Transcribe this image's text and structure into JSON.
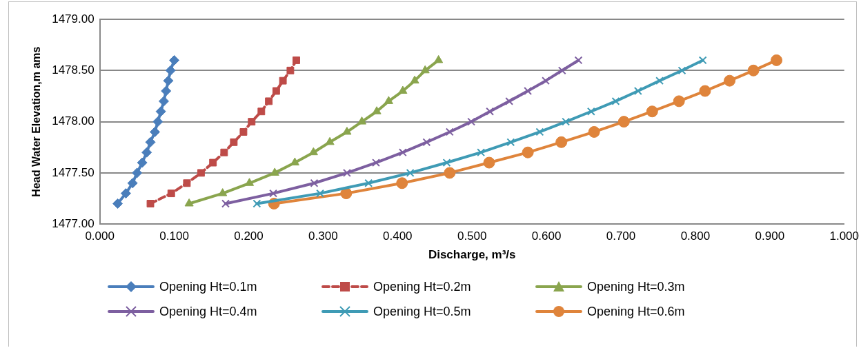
{
  "chart_data": {
    "type": "line",
    "xlabel": "Discharge, m³/s",
    "ylabel": "Head Water Elevation,m ams",
    "xlim": [
      0,
      1
    ],
    "ylim": [
      1477,
      1479
    ],
    "xticks": [
      {
        "value": 0,
        "label": "0.000"
      },
      {
        "value": 0.1,
        "label": "0.100"
      },
      {
        "value": 0.2,
        "label": "0.200"
      },
      {
        "value": 0.3,
        "label": "0.300"
      },
      {
        "value": 0.4,
        "label": "0.400"
      },
      {
        "value": 0.5,
        "label": "0.500"
      },
      {
        "value": 0.6,
        "label": "0.600"
      },
      {
        "value": 0.7,
        "label": "0.700"
      },
      {
        "value": 0.8,
        "label": "0.800"
      },
      {
        "value": 0.9,
        "label": "0.900"
      },
      {
        "value": 1,
        "label": "1.000"
      }
    ],
    "yticks": [
      {
        "value": 1477,
        "label": "1477.00"
      },
      {
        "value": 1477.5,
        "label": "1477.50"
      },
      {
        "value": 1478,
        "label": "1478.00"
      },
      {
        "value": 1478.5,
        "label": "1478.50"
      },
      {
        "value": 1479,
        "label": "1479.00"
      }
    ],
    "grid": "y",
    "legend": "bottom",
    "series": [
      {
        "name": "Opening Ht=0.1m",
        "color": "#4a7ebb",
        "marker": "diamond",
        "x": [
          0.024,
          0.035,
          0.044,
          0.05,
          0.057,
          0.063,
          0.068,
          0.074,
          0.078,
          0.082,
          0.086,
          0.089,
          0.092,
          0.095,
          0.1
        ],
        "values": [
          1477.2,
          1477.3,
          1477.4,
          1477.5,
          1477.6,
          1477.7,
          1477.8,
          1477.9,
          1478.0,
          1478.1,
          1478.2,
          1478.3,
          1478.4,
          1478.5,
          1478.6
        ]
      },
      {
        "name": "Opening Ht=0.2m",
        "color": "#be4b48",
        "marker": "square",
        "line_style": "dashed",
        "x": [
          0.068,
          0.096,
          0.117,
          0.136,
          0.152,
          0.167,
          0.18,
          0.193,
          0.204,
          0.217,
          0.227,
          0.237,
          0.246,
          0.256,
          0.264
        ],
        "values": [
          1477.2,
          1477.3,
          1477.4,
          1477.5,
          1477.6,
          1477.7,
          1477.8,
          1477.9,
          1478.0,
          1478.1,
          1478.2,
          1478.3,
          1478.4,
          1478.5,
          1478.6
        ]
      },
      {
        "name": "Opening Ht=0.3m",
        "color": "#8aa54e",
        "marker": "triangle",
        "x": [
          0.12,
          0.165,
          0.201,
          0.235,
          0.262,
          0.287,
          0.309,
          0.332,
          0.352,
          0.372,
          0.388,
          0.407,
          0.423,
          0.437,
          0.455
        ],
        "values": [
          1477.2,
          1477.3,
          1477.4,
          1477.5,
          1477.6,
          1477.7,
          1477.8,
          1477.9,
          1478.0,
          1478.1,
          1478.2,
          1478.3,
          1478.4,
          1478.5,
          1478.6
        ]
      },
      {
        "name": "Opening Ht=0.4m",
        "color": "#7d5fa0",
        "marker": "cross",
        "x": [
          0.169,
          0.233,
          0.288,
          0.332,
          0.371,
          0.407,
          0.439,
          0.47,
          0.499,
          0.524,
          0.55,
          0.575,
          0.599,
          0.621,
          0.643
        ],
        "values": [
          1477.2,
          1477.3,
          1477.4,
          1477.5,
          1477.6,
          1477.7,
          1477.8,
          1477.9,
          1478.0,
          1478.1,
          1478.2,
          1478.3,
          1478.4,
          1478.5,
          1478.6
        ]
      },
      {
        "name": "Opening Ht=0.5m",
        "color": "#3f9bb5",
        "marker": "cross",
        "x": [
          0.211,
          0.296,
          0.361,
          0.417,
          0.466,
          0.512,
          0.552,
          0.591,
          0.626,
          0.66,
          0.693,
          0.723,
          0.752,
          0.782,
          0.81
        ],
        "values": [
          1477.2,
          1477.3,
          1477.4,
          1477.5,
          1477.6,
          1477.7,
          1477.8,
          1477.9,
          1478.0,
          1478.1,
          1478.2,
          1478.3,
          1478.4,
          1478.5,
          1478.6
        ]
      },
      {
        "name": "Opening Ht=0.6m",
        "color": "#df843b",
        "marker": "circle",
        "x": [
          0.234,
          0.331,
          0.406,
          0.47,
          0.523,
          0.575,
          0.62,
          0.664,
          0.704,
          0.742,
          0.778,
          0.813,
          0.846,
          0.878,
          0.909
        ],
        "values": [
          1477.2,
          1477.3,
          1477.4,
          1477.5,
          1477.6,
          1477.7,
          1477.8,
          1477.9,
          1478.0,
          1478.1,
          1478.2,
          1478.3,
          1478.4,
          1478.5,
          1478.6
        ]
      }
    ]
  }
}
